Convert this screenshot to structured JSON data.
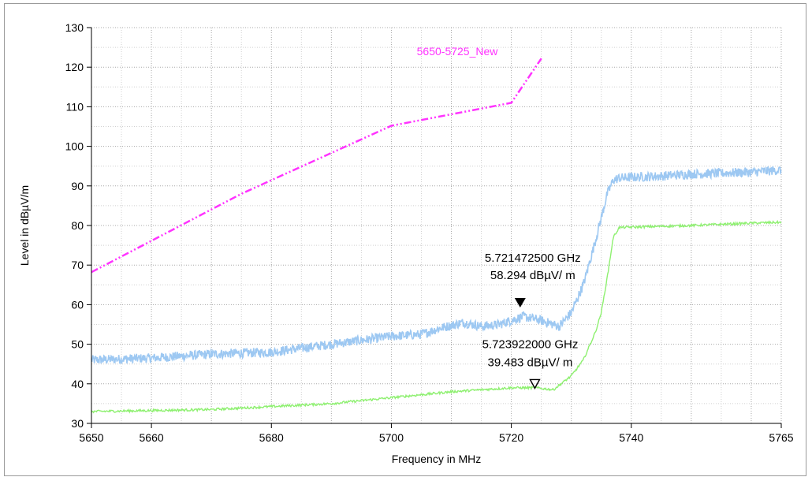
{
  "chart_data": {
    "type": "line",
    "title": "",
    "xlabel": "Frequency in MHz",
    "ylabel": "Level in dBµV/m",
    "xlim": [
      5650,
      5765
    ],
    "ylim": [
      30,
      130
    ],
    "x_ticks": [
      5650,
      5660,
      5680,
      5700,
      5720,
      5740,
      5765
    ],
    "x_minor_ticks": [
      5670,
      5690,
      5710,
      5730,
      5750,
      5760
    ],
    "y_ticks": [
      30,
      40,
      50,
      60,
      70,
      80,
      90,
      100,
      110,
      120,
      130
    ],
    "grid": true,
    "series": [
      {
        "name": "5650-5725_New",
        "color": "#ff33ff",
        "style": "dash-dot",
        "x": [
          5650,
          5675,
          5700,
          5720,
          5725
        ],
        "y": [
          68.2,
          88,
          105.2,
          111,
          122.2
        ]
      },
      {
        "color": "#9dc8f2",
        "style": "noisy",
        "x": [
          5650,
          5660,
          5670,
          5680,
          5690,
          5700,
          5705,
          5708,
          5712,
          5715,
          5718,
          5722,
          5725,
          5728,
          5730,
          5732,
          5734,
          5736,
          5737,
          5738,
          5745,
          5750,
          5755,
          5760,
          5765
        ],
        "y": [
          46,
          46.5,
          47.5,
          48,
          50,
          52,
          52.5,
          54,
          55.5,
          54.5,
          55,
          57,
          56,
          54.5,
          58,
          65,
          76,
          88,
          91.5,
          92,
          92.5,
          93,
          93.2,
          93.5,
          94
        ]
      },
      {
        "color": "#8ef070",
        "style": "line",
        "x": [
          5650,
          5670,
          5690,
          5700,
          5710,
          5720,
          5724,
          5727,
          5730,
          5732,
          5734,
          5735,
          5736,
          5737,
          5738,
          5745,
          5750,
          5755,
          5760,
          5765
        ],
        "y": [
          33,
          33.5,
          35,
          36.5,
          38,
          39,
          39,
          38.5,
          42,
          46,
          53,
          58,
          67,
          77,
          79.5,
          79.8,
          80,
          80.3,
          80.6,
          80.8
        ]
      }
    ],
    "markers": [
      {
        "symbol": "filled-triangle",
        "x": 5721.4725,
        "y": 58.294,
        "label_freq": "5.721472500 GHz",
        "label_level": "58.294 dBµV/ m"
      },
      {
        "symbol": "hollow-triangle",
        "x": 5723.922,
        "y": 39.483,
        "label_freq": "5.723922000 GHz",
        "label_level": "39.483 dBµV/ m"
      }
    ]
  }
}
